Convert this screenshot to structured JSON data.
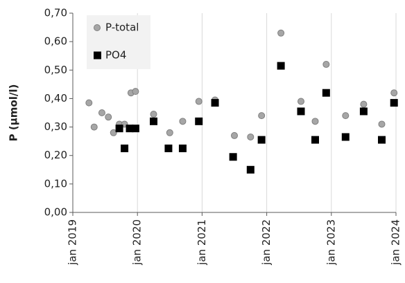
{
  "chart_data": {
    "type": "scatter",
    "y_label": "P (µmol/l)",
    "xlim": [
      2019,
      2024
    ],
    "xticks": [
      {
        "value": 2019,
        "label": "jan 2019"
      },
      {
        "value": 2020,
        "label": "jan 2020"
      },
      {
        "value": 2021,
        "label": "jan 2021"
      },
      {
        "value": 2022,
        "label": "jan 2022"
      },
      {
        "value": 2023,
        "label": "jan 2023"
      },
      {
        "value": 2024,
        "label": "jan 2024"
      }
    ],
    "ylim": [
      0,
      0.7
    ],
    "yticks": [
      {
        "value": 0,
        "label": "0,00"
      },
      {
        "value": 0.1,
        "label": "0,10"
      },
      {
        "value": 0.2,
        "label": "0,20"
      },
      {
        "value": 0.3,
        "label": "0,30"
      },
      {
        "value": 0.4,
        "label": "0,40"
      },
      {
        "value": 0.5,
        "label": "0,50"
      },
      {
        "value": 0.6,
        "label": "0,60"
      },
      {
        "value": 0.7,
        "label": "0,70"
      }
    ],
    "grid": true,
    "legend": "top-left",
    "series": [
      {
        "name": "P-total",
        "color": "#a6a6a6",
        "marker": "circle",
        "x": [
          2019.25,
          2019.33,
          2019.45,
          2019.55,
          2019.63,
          2019.72,
          2019.8,
          2019.9,
          2019.97,
          2020.25,
          2020.5,
          2020.7,
          2020.95,
          2021.2,
          2021.5,
          2021.75,
          2021.92,
          2022.22,
          2022.53,
          2022.75,
          2022.92,
          2023.22,
          2023.5,
          2023.78,
          2023.97
        ],
        "values": [
          0.385,
          0.3,
          0.35,
          0.335,
          0.28,
          0.31,
          0.31,
          0.42,
          0.425,
          0.345,
          0.28,
          0.32,
          0.39,
          0.395,
          0.27,
          0.265,
          0.34,
          0.63,
          0.39,
          0.32,
          0.52,
          0.34,
          0.38,
          0.31,
          0.42
        ]
      },
      {
        "name": "PO4",
        "color": "#000000",
        "marker": "square",
        "x": [
          2019.72,
          2019.8,
          2019.88,
          2019.97,
          2020.25,
          2020.48,
          2020.7,
          2020.95,
          2021.2,
          2021.48,
          2021.75,
          2021.92,
          2022.22,
          2022.53,
          2022.75,
          2022.92,
          2023.22,
          2023.5,
          2023.78,
          2023.97
        ],
        "values": [
          0.295,
          0.225,
          0.295,
          0.295,
          0.32,
          0.225,
          0.225,
          0.32,
          0.385,
          0.195,
          0.15,
          0.255,
          0.515,
          0.355,
          0.255,
          0.42,
          0.265,
          0.355,
          0.255,
          0.385
        ]
      }
    ]
  }
}
